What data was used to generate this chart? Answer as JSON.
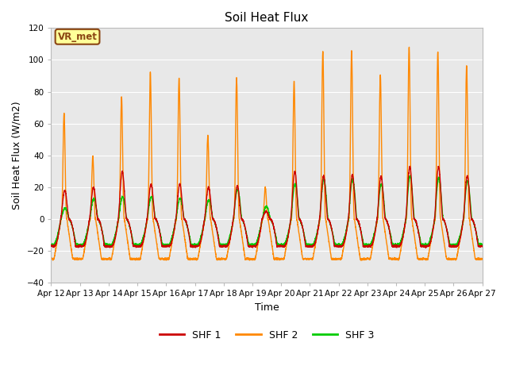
{
  "title": "Soil Heat Flux",
  "xlabel": "Time",
  "ylabel": "Soil Heat Flux (W/m2)",
  "ylim": [
    -40,
    120
  ],
  "yticks": [
    -40,
    -20,
    0,
    20,
    40,
    60,
    80,
    100,
    120
  ],
  "xtick_labels": [
    "Apr 12",
    "Apr 13",
    "Apr 14",
    "Apr 15",
    "Apr 16",
    "Apr 17",
    "Apr 18",
    "Apr 19",
    "Apr 20",
    "Apr 21",
    "Apr 22",
    "Apr 23",
    "Apr 24",
    "Apr 25",
    "Apr 26",
    "Apr 27"
  ],
  "colors": {
    "SHF 1": "#cc0000",
    "SHF 2": "#ff8800",
    "SHF 3": "#00cc00"
  },
  "legend_label": "VR_met",
  "legend_box_color": "#ffff99",
  "legend_box_edge": "#8B4513",
  "background_plot": "#e8e8e8",
  "background_fig": "#ffffff",
  "grid_color": "#ffffff",
  "linewidth": 1.0,
  "shf2_peaks": [
    67,
    40,
    77,
    93,
    89,
    53,
    89,
    20,
    87,
    106,
    106,
    91,
    109,
    106,
    97
  ],
  "shf1_peaks": [
    18,
    20,
    30,
    22,
    22,
    20,
    21,
    5,
    30,
    27,
    28,
    27,
    33,
    33,
    27
  ],
  "shf3_peaks": [
    7,
    13,
    14,
    14,
    13,
    12,
    19,
    8,
    22,
    25,
    25,
    22,
    27,
    26,
    24
  ],
  "shf2_nightval": -25,
  "shf1_nightval": -17,
  "shf3_nightval": -16,
  "n_days": 15,
  "pts_per_day": 288
}
